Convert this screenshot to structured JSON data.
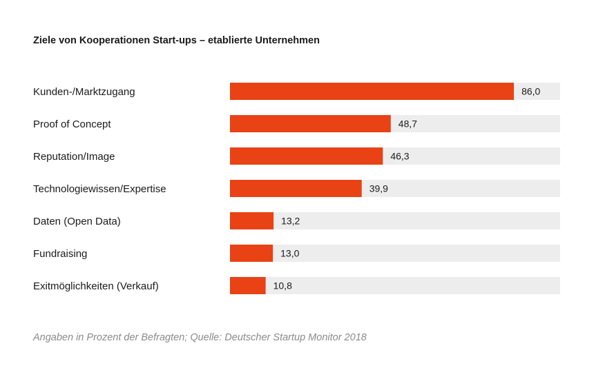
{
  "chart_data": {
    "type": "bar",
    "orientation": "horizontal",
    "title": "Ziele von Kooperationen Start-ups – etablierte Unternehmen",
    "categories": [
      "Kunden-/Marktzugang",
      "Proof of Concept",
      "Reputation/Image",
      "Technologiewissen/Expertise",
      "Daten (Open Data)",
      "Fundraising",
      "Exitmöglichkeiten (Verkauf)"
    ],
    "values": [
      86.0,
      48.7,
      46.3,
      39.9,
      13.2,
      13.0,
      10.8
    ],
    "value_labels": [
      "86,0",
      "48,7",
      "46,3",
      "39,9",
      "13,2",
      "13,0",
      "10,8"
    ],
    "xlim": [
      0,
      100
    ],
    "xlabel": "",
    "ylabel": "",
    "grid": false,
    "legend": "none",
    "source": "Angaben in Prozent der Befragten; Quelle: Deutscher Startup Monitor 2018",
    "colors": {
      "bar": "#e84215",
      "track": "#ededed",
      "text": "#1a1a1a",
      "source_text": "#8a8a8a"
    }
  }
}
